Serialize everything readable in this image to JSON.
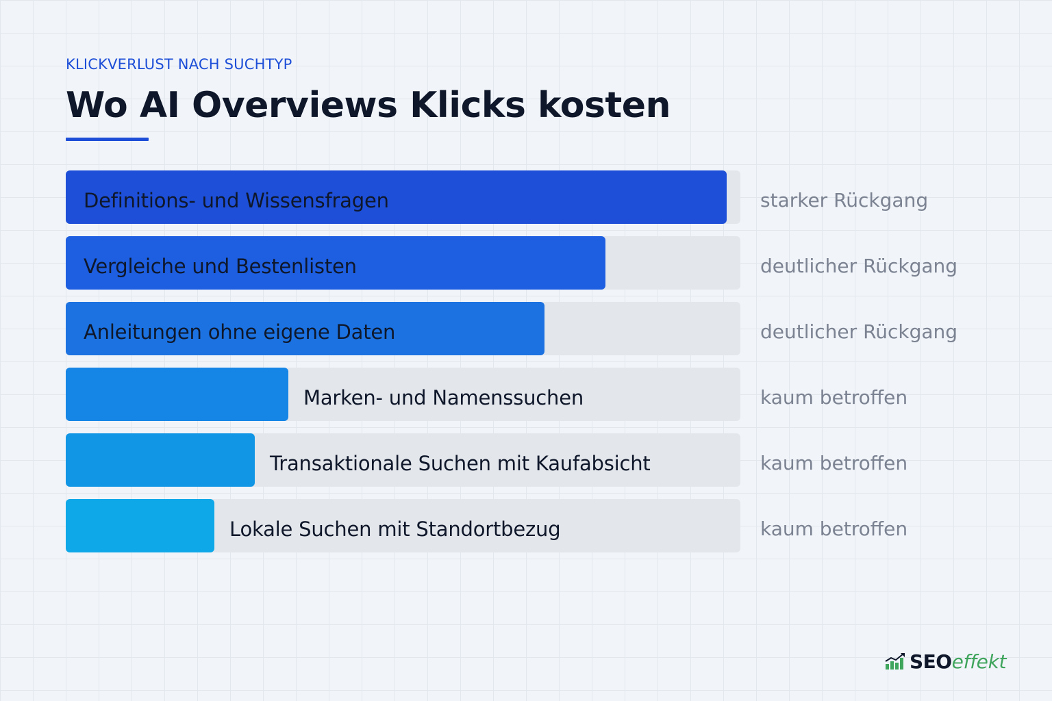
{
  "header": {
    "eyebrow": "KLICKVERLUST NACH SUCHTYP",
    "title": "Wo AI Overviews Klicks kosten"
  },
  "chart_data": {
    "type": "bar",
    "orientation": "horizontal",
    "title": "Wo AI Overviews Klicks kosten",
    "xlabel": "",
    "ylabel": "",
    "xlim": [
      0,
      100
    ],
    "grid": false,
    "legend": "none",
    "categories": [
      "Definitions- und Wissensfragen",
      "Vergleiche und Bestenlisten",
      "Anleitungen ohne eigene Daten",
      "Marken- und Namenssuchen",
      "Transaktionale Suchen mit Kaufabsicht",
      "Lokale Suchen mit Standortbezug"
    ],
    "values": [
      98,
      80,
      71,
      33,
      28,
      22
    ],
    "impact_labels": [
      "starker Rückgang",
      "deutlicher Rückgang",
      "deutlicher Rückgang",
      "kaum betroffen",
      "kaum betroffen",
      "kaum betroffen"
    ],
    "colors": [
      "#1e4fd8",
      "#1d5fe0",
      "#1b72e0",
      "#1585e6",
      "#1196e6",
      "#0ea8e9"
    ],
    "track_color": "#e3e6eb"
  },
  "brand": {
    "logo_seo": "SEO",
    "logo_effekt": "effekt",
    "logo_icon": "bar-chart-growth-icon",
    "logo_color": "#3fa45c"
  }
}
